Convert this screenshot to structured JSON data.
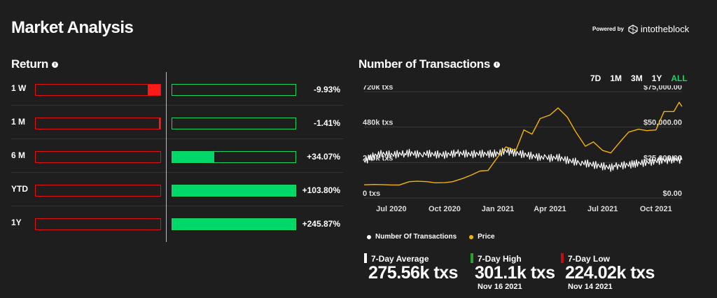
{
  "header": {
    "title": "Market Analysis",
    "powered_by": "Powered by",
    "brand": "intotheblock"
  },
  "returns": {
    "title": "Return",
    "rows": [
      {
        "label": "1 W",
        "value": "-9.93%",
        "neg_fill": 0.099,
        "pos_fill": 0
      },
      {
        "label": "1 M",
        "value": "-1.41%",
        "neg_fill": 0.014,
        "pos_fill": 0
      },
      {
        "label": "6 M",
        "value": "+34.07%",
        "neg_fill": 0,
        "pos_fill": 0.341
      },
      {
        "label": "YTD",
        "value": "+103.80%",
        "neg_fill": 0,
        "pos_fill": 1.0
      },
      {
        "label": "1Y",
        "value": "+245.87%",
        "neg_fill": 0,
        "pos_fill": 1.0
      }
    ]
  },
  "transactions": {
    "title": "Number of Transactions",
    "ranges": [
      "7D",
      "1M",
      "3M",
      "1Y",
      "ALL"
    ],
    "active_range": "ALL"
  },
  "chart_data": {
    "type": "line",
    "x_range": [
      "2020-05-15",
      "2021-11-15"
    ],
    "x_ticks": [
      "Jul 2020",
      "Oct 2020",
      "Jan 2021",
      "Apr 2021",
      "Jul 2021",
      "Oct 2021"
    ],
    "y_left": {
      "ticks": [
        "0 txs",
        "240k txs",
        "480k txs",
        "720k txs"
      ],
      "range": [
        0,
        720000
      ]
    },
    "y_right": {
      "ticks": [
        "$0.00",
        "$25,000.00",
        "$50,000.00",
        "$75,000.00"
      ],
      "range": [
        0,
        75000
      ]
    },
    "series": [
      {
        "name": "Number Of Transactions",
        "color": "#ffffff",
        "points": [
          [
            "2020-05-15",
            250000
          ],
          [
            "2020-06-01",
            285000
          ],
          [
            "2020-06-15",
            300000
          ],
          [
            "2020-07-01",
            292000
          ],
          [
            "2020-07-15",
            298000
          ],
          [
            "2020-08-01",
            305000
          ],
          [
            "2020-08-15",
            296000
          ],
          [
            "2020-09-01",
            300000
          ],
          [
            "2020-09-15",
            295000
          ],
          [
            "2020-10-01",
            292000
          ],
          [
            "2020-10-15",
            300000
          ],
          [
            "2020-11-01",
            302000
          ],
          [
            "2020-11-15",
            296000
          ],
          [
            "2020-12-01",
            300000
          ],
          [
            "2020-12-15",
            298000
          ],
          [
            "2021-01-01",
            302000
          ],
          [
            "2021-01-15",
            320000
          ],
          [
            "2021-02-01",
            305000
          ],
          [
            "2021-02-15",
            295000
          ],
          [
            "2021-03-01",
            285000
          ],
          [
            "2021-03-15",
            275000
          ],
          [
            "2021-04-01",
            270000
          ],
          [
            "2021-04-15",
            275000
          ],
          [
            "2021-05-01",
            255000
          ],
          [
            "2021-05-15",
            245000
          ],
          [
            "2021-06-01",
            235000
          ],
          [
            "2021-06-15",
            225000
          ],
          [
            "2021-07-01",
            215000
          ],
          [
            "2021-07-15",
            205000
          ],
          [
            "2021-08-01",
            220000
          ],
          [
            "2021-08-15",
            225000
          ],
          [
            "2021-09-01",
            235000
          ],
          [
            "2021-09-15",
            240000
          ],
          [
            "2021-10-01",
            250000
          ],
          [
            "2021-10-15",
            255000
          ],
          [
            "2021-11-01",
            262000
          ],
          [
            "2021-11-15",
            258000
          ]
        ]
      },
      {
        "name": "Price",
        "color": "#f5b400",
        "points": [
          [
            "2020-05-15",
            9300
          ],
          [
            "2020-06-01",
            9500
          ],
          [
            "2020-06-15",
            9400
          ],
          [
            "2020-07-01",
            9200
          ],
          [
            "2020-07-15",
            9200
          ],
          [
            "2020-08-01",
            11500
          ],
          [
            "2020-08-15",
            11800
          ],
          [
            "2020-09-01",
            11500
          ],
          [
            "2020-09-15",
            10700
          ],
          [
            "2020-10-01",
            10800
          ],
          [
            "2020-10-15",
            11500
          ],
          [
            "2020-11-01",
            13700
          ],
          [
            "2020-11-15",
            16000
          ],
          [
            "2020-12-01",
            19000
          ],
          [
            "2020-12-15",
            19400
          ],
          [
            "2021-01-01",
            29000
          ],
          [
            "2021-01-15",
            36000
          ],
          [
            "2021-02-01",
            33500
          ],
          [
            "2021-02-15",
            48000
          ],
          [
            "2021-03-01",
            45000
          ],
          [
            "2021-03-15",
            56000
          ],
          [
            "2021-04-01",
            58500
          ],
          [
            "2021-04-15",
            63500
          ],
          [
            "2021-05-01",
            57000
          ],
          [
            "2021-05-15",
            47000
          ],
          [
            "2021-06-01",
            36500
          ],
          [
            "2021-06-15",
            39500
          ],
          [
            "2021-07-01",
            33500
          ],
          [
            "2021-07-15",
            31800
          ],
          [
            "2021-08-01",
            40000
          ],
          [
            "2021-08-15",
            46500
          ],
          [
            "2021-09-01",
            48500
          ],
          [
            "2021-09-15",
            47500
          ],
          [
            "2021-10-01",
            48000
          ],
          [
            "2021-10-15",
            61000
          ],
          [
            "2021-11-01",
            61000
          ],
          [
            "2021-11-10",
            67500
          ],
          [
            "2021-11-15",
            64500
          ]
        ]
      }
    ]
  },
  "legend": [
    {
      "label": "Number Of Transactions",
      "color": "#ffffff"
    },
    {
      "label": "Price",
      "color": "#f5b400"
    }
  ],
  "stats": [
    {
      "label": "7-Day Average",
      "value": "275.56k txs",
      "date": "",
      "color": "#ffffff"
    },
    {
      "label": "7-Day High",
      "value": "301.1k txs",
      "date": "Nov 16 2021",
      "color": "#2e9e2e"
    },
    {
      "label": "7-Day Low",
      "value": "224.02k txs",
      "date": "Nov 14 2021",
      "color": "#c01010"
    }
  ]
}
